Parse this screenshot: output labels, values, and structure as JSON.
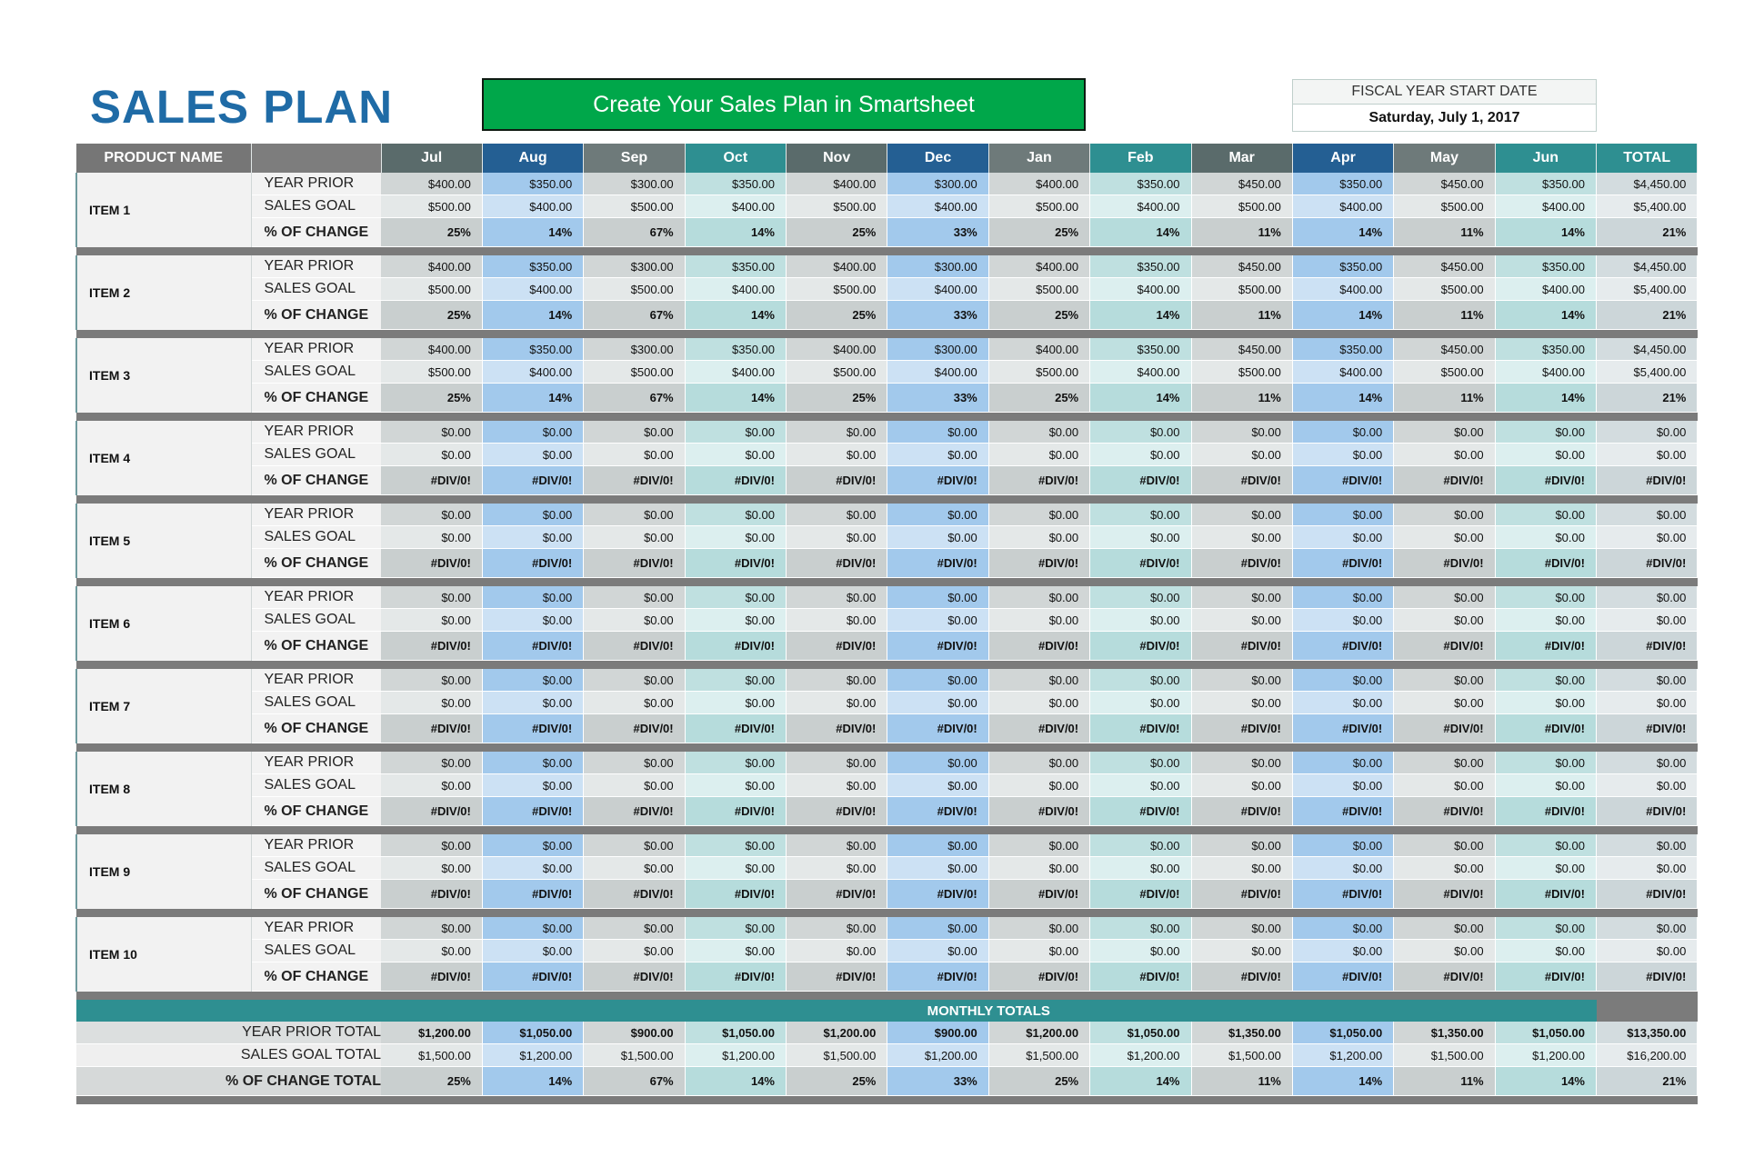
{
  "title": "SALES PLAN",
  "banner": "Create Your Sales Plan in Smartsheet",
  "fiscal": {
    "label": "FISCAL YEAR START DATE",
    "value": "Saturday, July 1, 2017"
  },
  "colors": {
    "title": "#1f6ba6",
    "banner": "#00a74a",
    "teal": "#2e8f91",
    "header_gray": "#5a6b6b",
    "header_blue": "#245f93"
  },
  "headers": {
    "product": "PRODUCT NAME",
    "months": [
      "Jul",
      "Aug",
      "Sep",
      "Oct",
      "Nov",
      "Dec",
      "Jan",
      "Feb",
      "Mar",
      "Apr",
      "May",
      "Jun"
    ],
    "total": "TOTAL"
  },
  "row_labels": [
    "YEAR PRIOR",
    "SALES GOAL",
    "% OF CHANGE"
  ],
  "items": [
    {
      "name": "ITEM 1",
      "year_prior": [
        "$400.00",
        "$350.00",
        "$300.00",
        "$350.00",
        "$400.00",
        "$300.00",
        "$400.00",
        "$350.00",
        "$450.00",
        "$350.00",
        "$450.00",
        "$350.00",
        "$4,450.00"
      ],
      "sales_goal": [
        "$500.00",
        "$400.00",
        "$500.00",
        "$400.00",
        "$500.00",
        "$400.00",
        "$500.00",
        "$400.00",
        "$500.00",
        "$400.00",
        "$500.00",
        "$400.00",
        "$5,400.00"
      ],
      "change": [
        "25%",
        "14%",
        "67%",
        "14%",
        "25%",
        "33%",
        "25%",
        "14%",
        "11%",
        "14%",
        "11%",
        "14%",
        "21%"
      ]
    },
    {
      "name": "ITEM 2",
      "year_prior": [
        "$400.00",
        "$350.00",
        "$300.00",
        "$350.00",
        "$400.00",
        "$300.00",
        "$400.00",
        "$350.00",
        "$450.00",
        "$350.00",
        "$450.00",
        "$350.00",
        "$4,450.00"
      ],
      "sales_goal": [
        "$500.00",
        "$400.00",
        "$500.00",
        "$400.00",
        "$500.00",
        "$400.00",
        "$500.00",
        "$400.00",
        "$500.00",
        "$400.00",
        "$500.00",
        "$400.00",
        "$5,400.00"
      ],
      "change": [
        "25%",
        "14%",
        "67%",
        "14%",
        "25%",
        "33%",
        "25%",
        "14%",
        "11%",
        "14%",
        "11%",
        "14%",
        "21%"
      ]
    },
    {
      "name": "ITEM 3",
      "year_prior": [
        "$400.00",
        "$350.00",
        "$300.00",
        "$350.00",
        "$400.00",
        "$300.00",
        "$400.00",
        "$350.00",
        "$450.00",
        "$350.00",
        "$450.00",
        "$350.00",
        "$4,450.00"
      ],
      "sales_goal": [
        "$500.00",
        "$400.00",
        "$500.00",
        "$400.00",
        "$500.00",
        "$400.00",
        "$500.00",
        "$400.00",
        "$500.00",
        "$400.00",
        "$500.00",
        "$400.00",
        "$5,400.00"
      ],
      "change": [
        "25%",
        "14%",
        "67%",
        "14%",
        "25%",
        "33%",
        "25%",
        "14%",
        "11%",
        "14%",
        "11%",
        "14%",
        "21%"
      ]
    },
    {
      "name": "ITEM 4",
      "year_prior": [
        "$0.00",
        "$0.00",
        "$0.00",
        "$0.00",
        "$0.00",
        "$0.00",
        "$0.00",
        "$0.00",
        "$0.00",
        "$0.00",
        "$0.00",
        "$0.00",
        "$0.00"
      ],
      "sales_goal": [
        "$0.00",
        "$0.00",
        "$0.00",
        "$0.00",
        "$0.00",
        "$0.00",
        "$0.00",
        "$0.00",
        "$0.00",
        "$0.00",
        "$0.00",
        "$0.00",
        "$0.00"
      ],
      "change": [
        "#DIV/0!",
        "#DIV/0!",
        "#DIV/0!",
        "#DIV/0!",
        "#DIV/0!",
        "#DIV/0!",
        "#DIV/0!",
        "#DIV/0!",
        "#DIV/0!",
        "#DIV/0!",
        "#DIV/0!",
        "#DIV/0!",
        "#DIV/0!"
      ]
    },
    {
      "name": "ITEM 5",
      "year_prior": [
        "$0.00",
        "$0.00",
        "$0.00",
        "$0.00",
        "$0.00",
        "$0.00",
        "$0.00",
        "$0.00",
        "$0.00",
        "$0.00",
        "$0.00",
        "$0.00",
        "$0.00"
      ],
      "sales_goal": [
        "$0.00",
        "$0.00",
        "$0.00",
        "$0.00",
        "$0.00",
        "$0.00",
        "$0.00",
        "$0.00",
        "$0.00",
        "$0.00",
        "$0.00",
        "$0.00",
        "$0.00"
      ],
      "change": [
        "#DIV/0!",
        "#DIV/0!",
        "#DIV/0!",
        "#DIV/0!",
        "#DIV/0!",
        "#DIV/0!",
        "#DIV/0!",
        "#DIV/0!",
        "#DIV/0!",
        "#DIV/0!",
        "#DIV/0!",
        "#DIV/0!",
        "#DIV/0!"
      ]
    },
    {
      "name": "ITEM 6",
      "year_prior": [
        "$0.00",
        "$0.00",
        "$0.00",
        "$0.00",
        "$0.00",
        "$0.00",
        "$0.00",
        "$0.00",
        "$0.00",
        "$0.00",
        "$0.00",
        "$0.00",
        "$0.00"
      ],
      "sales_goal": [
        "$0.00",
        "$0.00",
        "$0.00",
        "$0.00",
        "$0.00",
        "$0.00",
        "$0.00",
        "$0.00",
        "$0.00",
        "$0.00",
        "$0.00",
        "$0.00",
        "$0.00"
      ],
      "change": [
        "#DIV/0!",
        "#DIV/0!",
        "#DIV/0!",
        "#DIV/0!",
        "#DIV/0!",
        "#DIV/0!",
        "#DIV/0!",
        "#DIV/0!",
        "#DIV/0!",
        "#DIV/0!",
        "#DIV/0!",
        "#DIV/0!",
        "#DIV/0!"
      ]
    },
    {
      "name": "ITEM 7",
      "year_prior": [
        "$0.00",
        "$0.00",
        "$0.00",
        "$0.00",
        "$0.00",
        "$0.00",
        "$0.00",
        "$0.00",
        "$0.00",
        "$0.00",
        "$0.00",
        "$0.00",
        "$0.00"
      ],
      "sales_goal": [
        "$0.00",
        "$0.00",
        "$0.00",
        "$0.00",
        "$0.00",
        "$0.00",
        "$0.00",
        "$0.00",
        "$0.00",
        "$0.00",
        "$0.00",
        "$0.00",
        "$0.00"
      ],
      "change": [
        "#DIV/0!",
        "#DIV/0!",
        "#DIV/0!",
        "#DIV/0!",
        "#DIV/0!",
        "#DIV/0!",
        "#DIV/0!",
        "#DIV/0!",
        "#DIV/0!",
        "#DIV/0!",
        "#DIV/0!",
        "#DIV/0!",
        "#DIV/0!"
      ]
    },
    {
      "name": "ITEM 8",
      "year_prior": [
        "$0.00",
        "$0.00",
        "$0.00",
        "$0.00",
        "$0.00",
        "$0.00",
        "$0.00",
        "$0.00",
        "$0.00",
        "$0.00",
        "$0.00",
        "$0.00",
        "$0.00"
      ],
      "sales_goal": [
        "$0.00",
        "$0.00",
        "$0.00",
        "$0.00",
        "$0.00",
        "$0.00",
        "$0.00",
        "$0.00",
        "$0.00",
        "$0.00",
        "$0.00",
        "$0.00",
        "$0.00"
      ],
      "change": [
        "#DIV/0!",
        "#DIV/0!",
        "#DIV/0!",
        "#DIV/0!",
        "#DIV/0!",
        "#DIV/0!",
        "#DIV/0!",
        "#DIV/0!",
        "#DIV/0!",
        "#DIV/0!",
        "#DIV/0!",
        "#DIV/0!",
        "#DIV/0!"
      ]
    },
    {
      "name": "ITEM 9",
      "year_prior": [
        "$0.00",
        "$0.00",
        "$0.00",
        "$0.00",
        "$0.00",
        "$0.00",
        "$0.00",
        "$0.00",
        "$0.00",
        "$0.00",
        "$0.00",
        "$0.00",
        "$0.00"
      ],
      "sales_goal": [
        "$0.00",
        "$0.00",
        "$0.00",
        "$0.00",
        "$0.00",
        "$0.00",
        "$0.00",
        "$0.00",
        "$0.00",
        "$0.00",
        "$0.00",
        "$0.00",
        "$0.00"
      ],
      "change": [
        "#DIV/0!",
        "#DIV/0!",
        "#DIV/0!",
        "#DIV/0!",
        "#DIV/0!",
        "#DIV/0!",
        "#DIV/0!",
        "#DIV/0!",
        "#DIV/0!",
        "#DIV/0!",
        "#DIV/0!",
        "#DIV/0!",
        "#DIV/0!"
      ]
    },
    {
      "name": "ITEM 10",
      "year_prior": [
        "$0.00",
        "$0.00",
        "$0.00",
        "$0.00",
        "$0.00",
        "$0.00",
        "$0.00",
        "$0.00",
        "$0.00",
        "$0.00",
        "$0.00",
        "$0.00",
        "$0.00"
      ],
      "sales_goal": [
        "$0.00",
        "$0.00",
        "$0.00",
        "$0.00",
        "$0.00",
        "$0.00",
        "$0.00",
        "$0.00",
        "$0.00",
        "$0.00",
        "$0.00",
        "$0.00",
        "$0.00"
      ],
      "change": [
        "#DIV/0!",
        "#DIV/0!",
        "#DIV/0!",
        "#DIV/0!",
        "#DIV/0!",
        "#DIV/0!",
        "#DIV/0!",
        "#DIV/0!",
        "#DIV/0!",
        "#DIV/0!",
        "#DIV/0!",
        "#DIV/0!",
        "#DIV/0!"
      ]
    }
  ],
  "monthly_totals": {
    "label": "MONTHLY TOTALS",
    "rows": [
      {
        "label": "YEAR PRIOR TOTAL",
        "values": [
          "$1,200.00",
          "$1,050.00",
          "$900.00",
          "$1,050.00",
          "$1,200.00",
          "$900.00",
          "$1,200.00",
          "$1,050.00",
          "$1,350.00",
          "$1,050.00",
          "$1,350.00",
          "$1,050.00",
          "$13,350.00"
        ]
      },
      {
        "label": "SALES GOAL TOTAL",
        "values": [
          "$1,500.00",
          "$1,200.00",
          "$1,500.00",
          "$1,200.00",
          "$1,500.00",
          "$1,200.00",
          "$1,500.00",
          "$1,200.00",
          "$1,500.00",
          "$1,200.00",
          "$1,500.00",
          "$1,200.00",
          "$16,200.00"
        ]
      },
      {
        "label": "% OF CHANGE TOTAL",
        "values": [
          "25%",
          "14%",
          "67%",
          "14%",
          "25%",
          "33%",
          "25%",
          "14%",
          "11%",
          "14%",
          "11%",
          "14%",
          "21%"
        ]
      }
    ]
  }
}
